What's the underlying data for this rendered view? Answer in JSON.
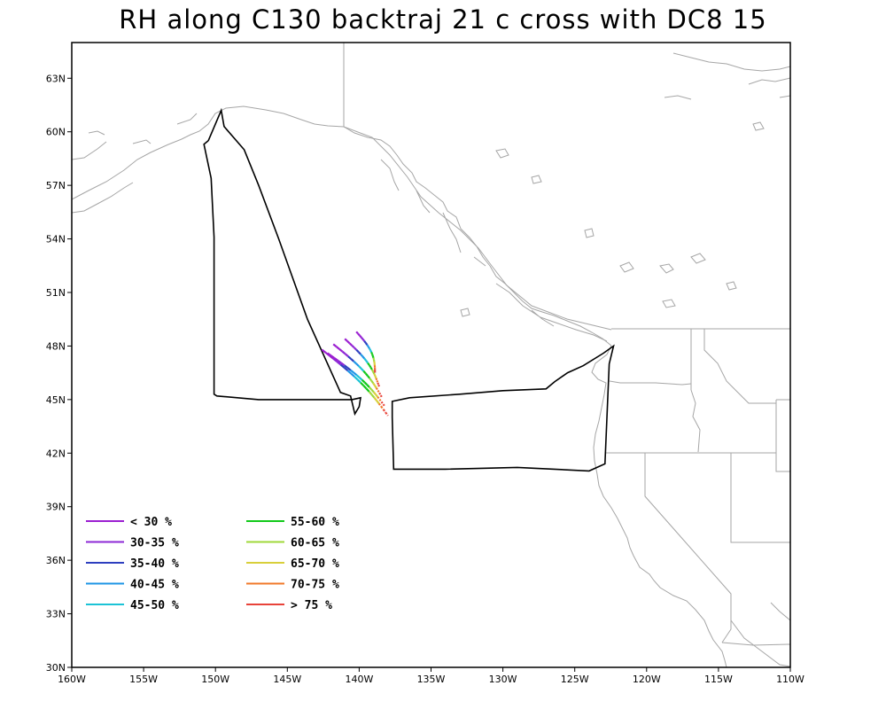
{
  "title": "RH along C130 backtraj 21 c cross with DC8 15",
  "map": {
    "lon_range": [
      -160,
      -110
    ],
    "lat_range": [
      30,
      65
    ],
    "x_tick_labels": [
      "160W",
      "155W",
      "150W",
      "145W",
      "140W",
      "135W",
      "130W",
      "125W",
      "120W",
      "115W",
      "110W"
    ],
    "y_tick_labels": [
      "30N",
      "33N",
      "36N",
      "39N",
      "42N",
      "45N",
      "48N",
      "51N",
      "54N",
      "57N",
      "60N",
      "63N"
    ],
    "coastline_color": "#a6a6a6",
    "boundary_color": "#a6a6a6"
  },
  "legend": {
    "items": [
      {
        "label": "< 30 %",
        "color": "#9b1fd1"
      },
      {
        "label": "30-35 %",
        "color": "#8d28d6"
      },
      {
        "label": "35-40 %",
        "color": "#2d3fbf"
      },
      {
        "label": "40-45 %",
        "color": "#1e96e6"
      },
      {
        "label": "45-50 %",
        "color": "#1cc3d6"
      },
      {
        "label": "55-60 %",
        "color": "#12c91a"
      },
      {
        "label": "60-65 %",
        "color": "#9fd93a"
      },
      {
        "label": "65-70 %",
        "color": "#d8cf3a"
      },
      {
        "label": "70-75 %",
        "color": "#f0782a"
      },
      {
        "label": "> 75 %",
        "color": "#e8433a"
      }
    ]
  },
  "flight_track": {
    "color": "#000000",
    "points": [
      [
        -150.5,
        59.5
      ],
      [
        -149.6,
        61.2
      ],
      [
        -149.4,
        60.3
      ],
      [
        -148.0,
        59.0
      ],
      [
        -147.0,
        57.0
      ],
      [
        -145.6,
        54.0
      ],
      [
        -143.6,
        49.5
      ],
      [
        -141.3,
        45.4
      ],
      [
        -140.6,
        45.2
      ],
      [
        -140.3,
        44.2
      ],
      [
        -140.0,
        44.6
      ],
      [
        -139.9,
        45.1
      ],
      [
        -140.5,
        45.0
      ],
      [
        -143.0,
        45.0
      ],
      [
        -147.0,
        45.0
      ],
      [
        -149.9,
        45.2
      ],
      [
        -150.1,
        45.3
      ],
      [
        -150.1,
        54.1
      ],
      [
        -150.3,
        57.4
      ],
      [
        -150.8,
        59.3
      ],
      [
        -150.5,
        59.5
      ]
    ],
    "points2": [
      [
        -137.7,
        44.0
      ],
      [
        -137.7,
        44.9
      ],
      [
        -136.5,
        45.1
      ],
      [
        -133.0,
        45.3
      ],
      [
        -130.0,
        45.5
      ],
      [
        -127.0,
        45.6
      ],
      [
        -126.4,
        46.0
      ],
      [
        -125.5,
        46.5
      ],
      [
        -124.4,
        46.9
      ],
      [
        -123.0,
        47.6
      ],
      [
        -122.3,
        48.0
      ],
      [
        -122.6,
        47.0
      ],
      [
        -122.9,
        41.4
      ],
      [
        -124.0,
        41.0
      ],
      [
        -129.0,
        41.2
      ],
      [
        -134.0,
        41.1
      ],
      [
        -137.6,
        41.1
      ],
      [
        -137.7,
        44.0
      ]
    ]
  },
  "trajectories": [
    {
      "start": [
        -142.6,
        47.8
      ],
      "end": [
        -138.0,
        44.1
      ]
    },
    {
      "start": [
        -142.2,
        47.6
      ],
      "end": [
        -138.2,
        44.6
      ]
    },
    {
      "start": [
        -141.8,
        48.1
      ],
      "end": [
        -138.4,
        45.1
      ]
    },
    {
      "start": [
        -141.0,
        48.4
      ],
      "end": [
        -138.6,
        45.7
      ]
    },
    {
      "start": [
        -140.2,
        48.8
      ],
      "end": [
        -138.9,
        46.5
      ]
    }
  ]
}
